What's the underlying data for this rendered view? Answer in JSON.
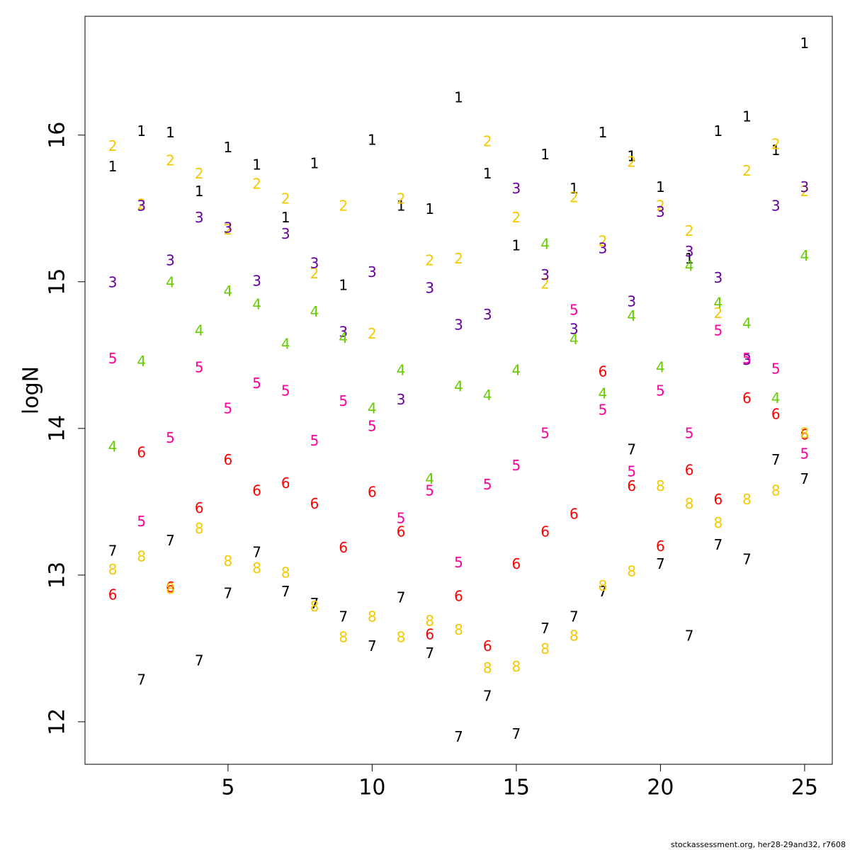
{
  "chart_data": {
    "type": "scatter",
    "marker": "series-name",
    "y_label": "logN",
    "footer": "stockassessment.org, her28-29and32, r7608",
    "xlim": [
      0.04,
      25.96
    ],
    "ylim": [
      11.71,
      16.81
    ],
    "xticks": [
      5,
      10,
      15,
      20,
      25
    ],
    "yticks": [
      12,
      13,
      14,
      15,
      16
    ],
    "x": [
      1,
      2,
      3,
      4,
      5,
      6,
      7,
      8,
      9,
      10,
      11,
      12,
      13,
      14,
      15,
      16,
      17,
      18,
      19,
      20,
      21,
      22,
      23,
      24,
      25
    ],
    "series": [
      {
        "name": "1",
        "color": "#000000",
        "values": [
          15.78,
          16.02,
          16.01,
          15.61,
          15.91,
          15.79,
          15.43,
          15.8,
          14.97,
          15.96,
          15.51,
          15.49,
          16.25,
          15.73,
          15.24,
          15.86,
          15.63,
          16.01,
          15.85,
          15.64,
          15.15,
          16.02,
          16.12,
          15.89,
          16.62
        ]
      },
      {
        "name": "2",
        "color": "#F5C800",
        "values": [
          15.92,
          15.52,
          15.82,
          15.73,
          15.35,
          15.66,
          15.56,
          15.05,
          15.51,
          14.64,
          15.56,
          15.14,
          15.15,
          15.95,
          15.43,
          14.98,
          15.57,
          15.27,
          15.81,
          15.51,
          15.34,
          14.78,
          15.75,
          15.93,
          15.61
        ]
      },
      {
        "name": "3",
        "color": "#6600A0",
        "values": [
          14.99,
          15.51,
          15.14,
          15.43,
          15.36,
          15.0,
          15.32,
          15.12,
          14.65,
          15.06,
          14.19,
          14.95,
          14.7,
          14.77,
          15.63,
          15.04,
          14.67,
          15.22,
          14.86,
          15.47,
          15.2,
          15.02,
          14.46,
          15.51,
          15.64
        ]
      },
      {
        "name": "4",
        "color": "#66CC00",
        "values": [
          13.87,
          14.45,
          14.99,
          14.66,
          14.93,
          14.84,
          14.57,
          14.79,
          14.61,
          14.13,
          14.39,
          13.65,
          14.28,
          14.22,
          14.39,
          15.25,
          14.6,
          14.23,
          14.76,
          14.41,
          15.1,
          14.85,
          14.71,
          14.2,
          15.17
        ]
      },
      {
        "name": "5",
        "color": "#FF0099",
        "values": [
          14.47,
          13.36,
          13.93,
          14.41,
          14.13,
          14.3,
          14.25,
          13.91,
          14.18,
          14.01,
          13.38,
          13.57,
          13.08,
          13.61,
          13.74,
          13.96,
          14.8,
          14.12,
          13.7,
          14.25,
          13.96,
          14.66,
          14.47,
          14.4,
          13.82
        ]
      },
      {
        "name": "6",
        "color": "#FF0000",
        "values": [
          12.86,
          13.83,
          12.91,
          13.45,
          13.78,
          13.57,
          13.62,
          13.48,
          13.18,
          13.56,
          13.29,
          12.59,
          12.85,
          12.51,
          13.07,
          13.29,
          13.41,
          14.38,
          13.6,
          13.19,
          13.71,
          13.51,
          14.2,
          14.09,
          13.95
        ]
      },
      {
        "name": "7",
        "color": "#000000",
        "values": [
          13.16,
          12.28,
          13.23,
          12.41,
          12.87,
          13.15,
          12.88,
          12.8,
          12.71,
          12.51,
          12.84,
          12.46,
          11.89,
          12.17,
          11.91,
          12.63,
          12.71,
          12.88,
          13.85,
          13.07,
          12.58,
          13.2,
          13.1,
          13.78,
          13.65
        ]
      },
      {
        "name": "8",
        "color": "#F5C800",
        "values": [
          13.03,
          13.12,
          12.9,
          13.31,
          13.09,
          13.04,
          13.01,
          12.78,
          12.57,
          12.71,
          12.57,
          12.68,
          12.62,
          12.36,
          12.37,
          12.49,
          12.58,
          12.92,
          13.02,
          13.6,
          13.48,
          13.35,
          13.51,
          13.57,
          13.96
        ]
      }
    ]
  }
}
